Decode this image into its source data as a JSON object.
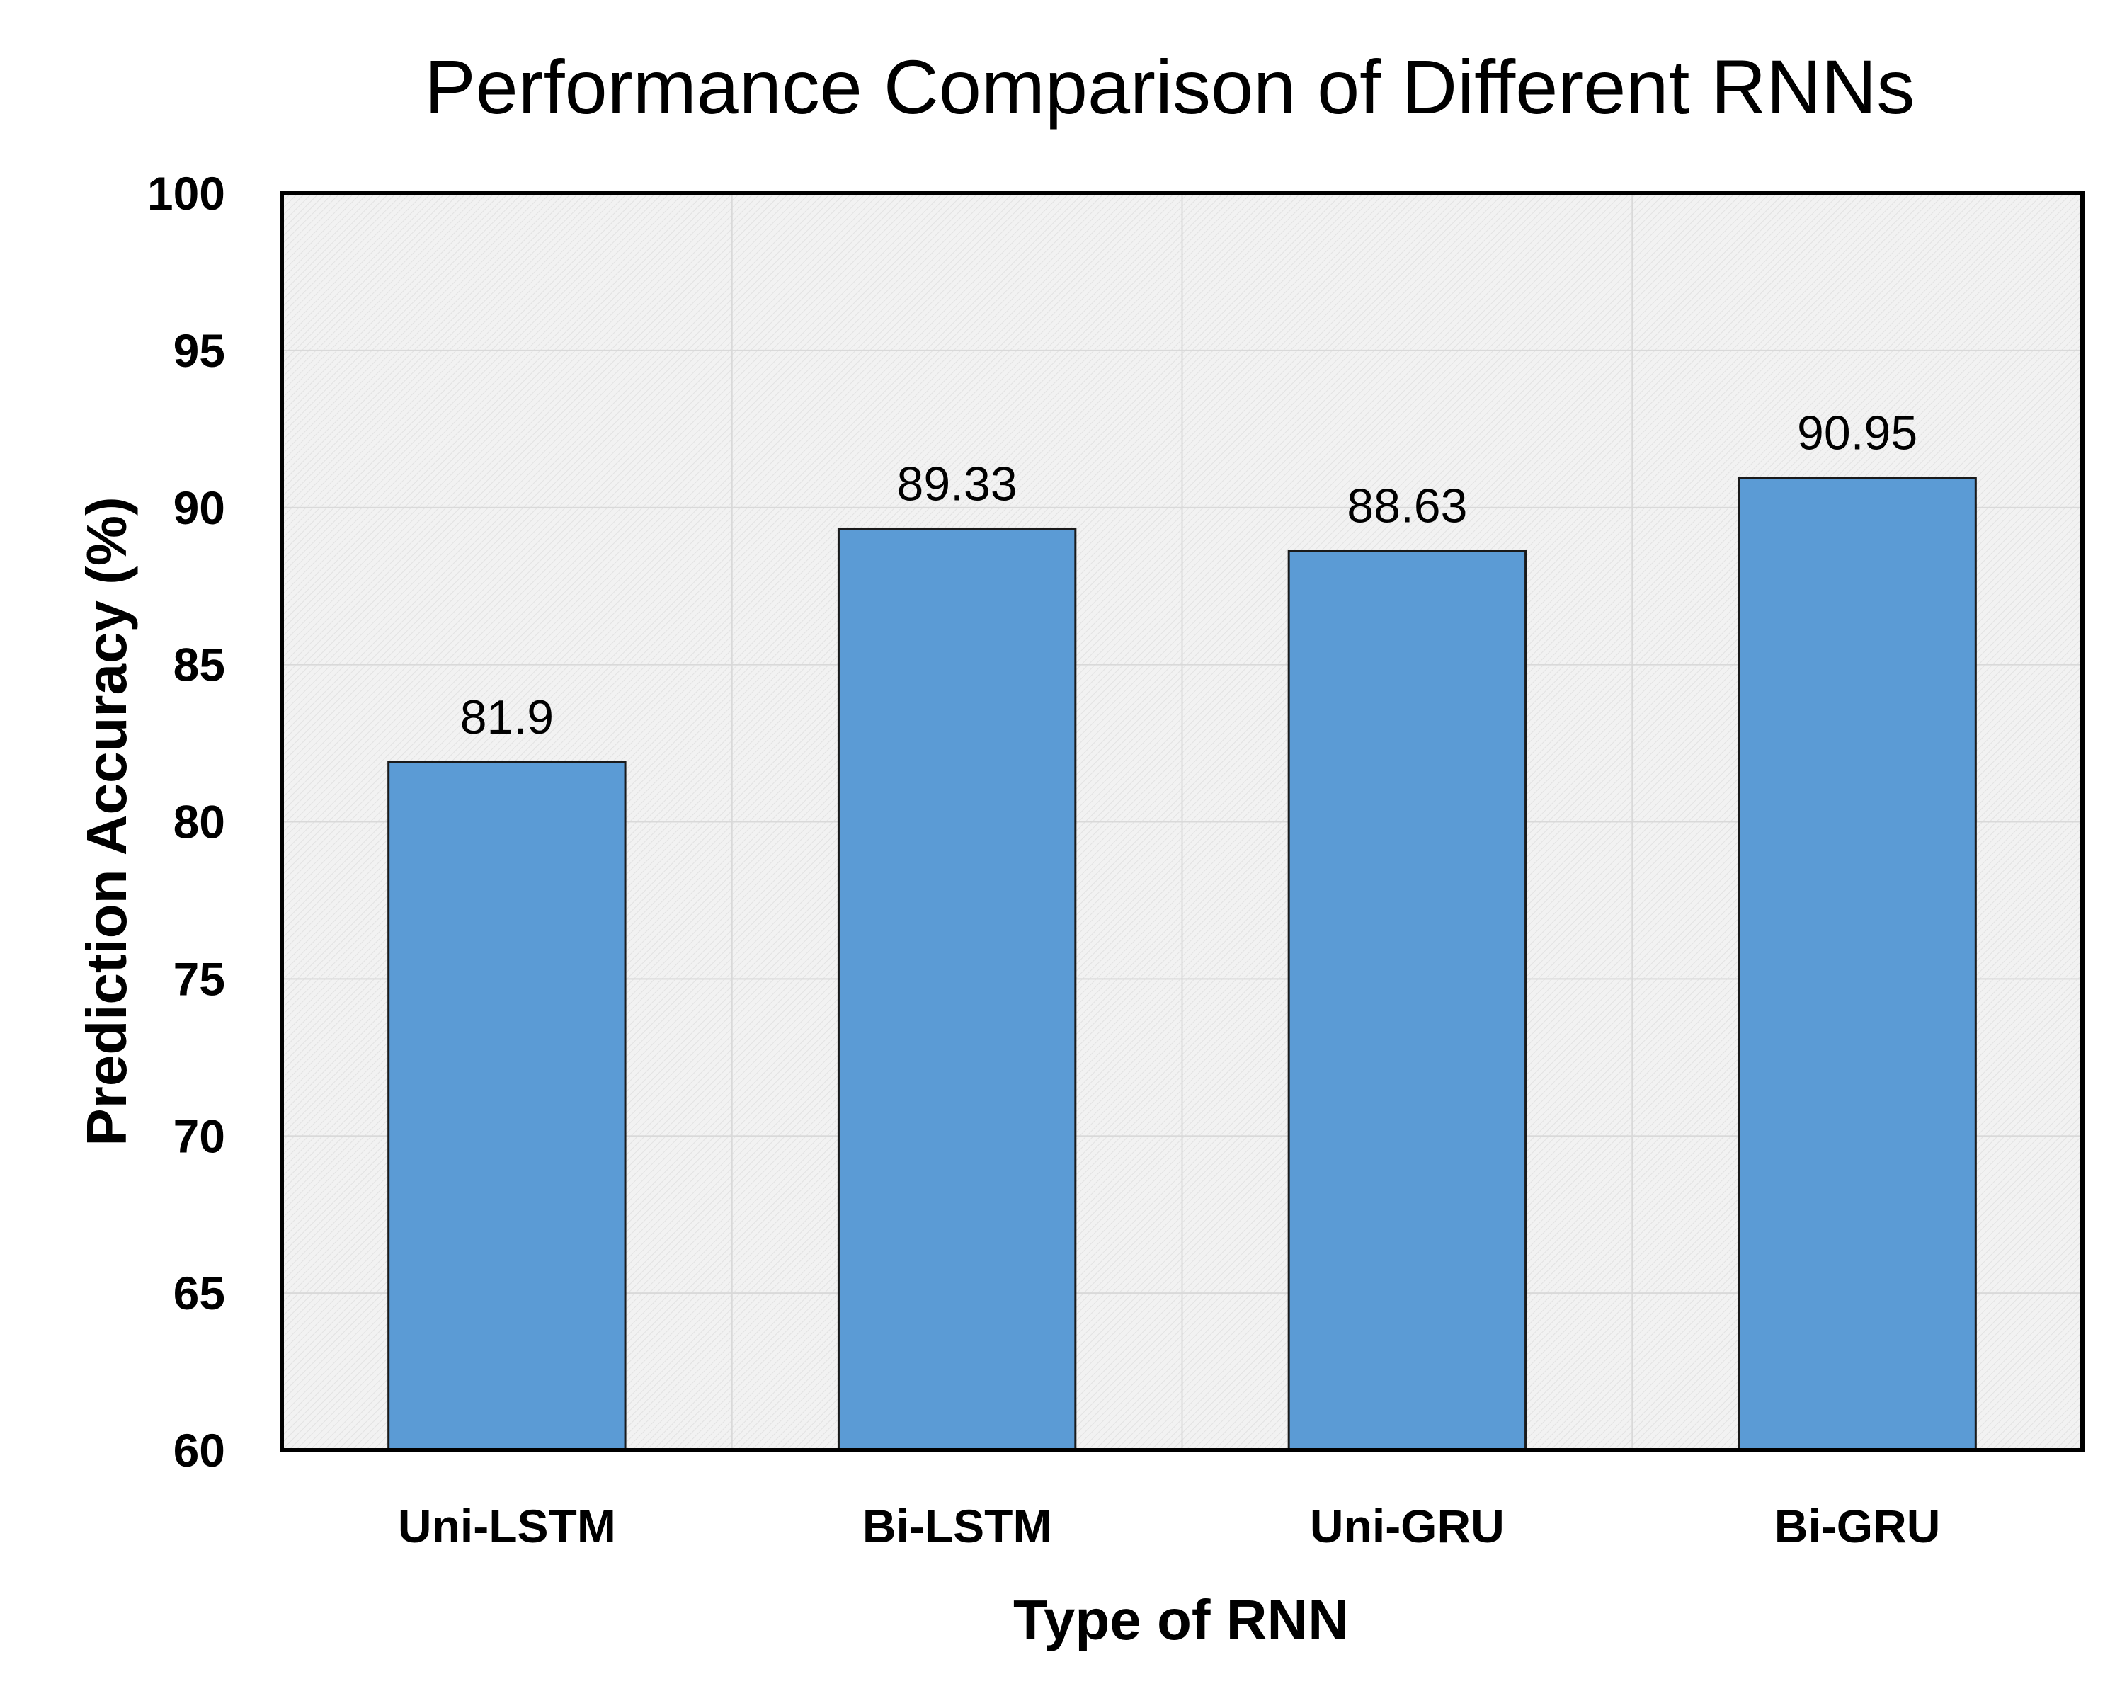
{
  "chart_data": {
    "type": "bar",
    "title": "Performance Comparison of Different RNNs",
    "xlabel": "Type of RNN",
    "ylabel": "Prediction Accuracy (%)",
    "categories": [
      "Uni-LSTM",
      "Bi-LSTM",
      "Uni-GRU",
      "Bi-GRU"
    ],
    "values": [
      81.9,
      89.33,
      88.63,
      90.95
    ],
    "data_labels": [
      "81.9",
      "89.33",
      "88.63",
      "90.95"
    ],
    "ylim": [
      60,
      100
    ],
    "yticks": [
      60,
      65,
      70,
      75,
      80,
      85,
      90,
      95,
      100
    ],
    "grid": true,
    "legend": "none",
    "colors": {
      "bar": "#5b9bd5",
      "bar_edge": "#1a1a1a",
      "plot_bg": "#f4f4f4",
      "grid": "#d9d9d9"
    }
  }
}
